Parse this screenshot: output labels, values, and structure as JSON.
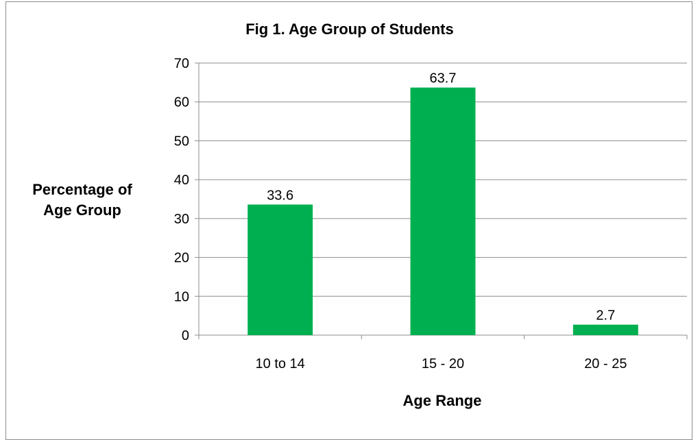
{
  "chart_data": {
    "type": "bar",
    "title": "Fig 1. Age Group of Students",
    "ylabel_lines": [
      "Percentage of",
      "Age Group"
    ],
    "xlabel": "Age Range",
    "categories": [
      "10 to 14",
      "15 - 20",
      "20 - 25"
    ],
    "values": [
      33.6,
      63.7,
      2.7
    ],
    "value_labels": [
      "33.6",
      "63.7",
      "2.7"
    ],
    "ylim": [
      0,
      70
    ],
    "yticks": [
      0,
      10,
      20,
      30,
      40,
      50,
      60,
      70
    ],
    "grid": true,
    "legend": "none",
    "bar_color": "#00b050"
  }
}
